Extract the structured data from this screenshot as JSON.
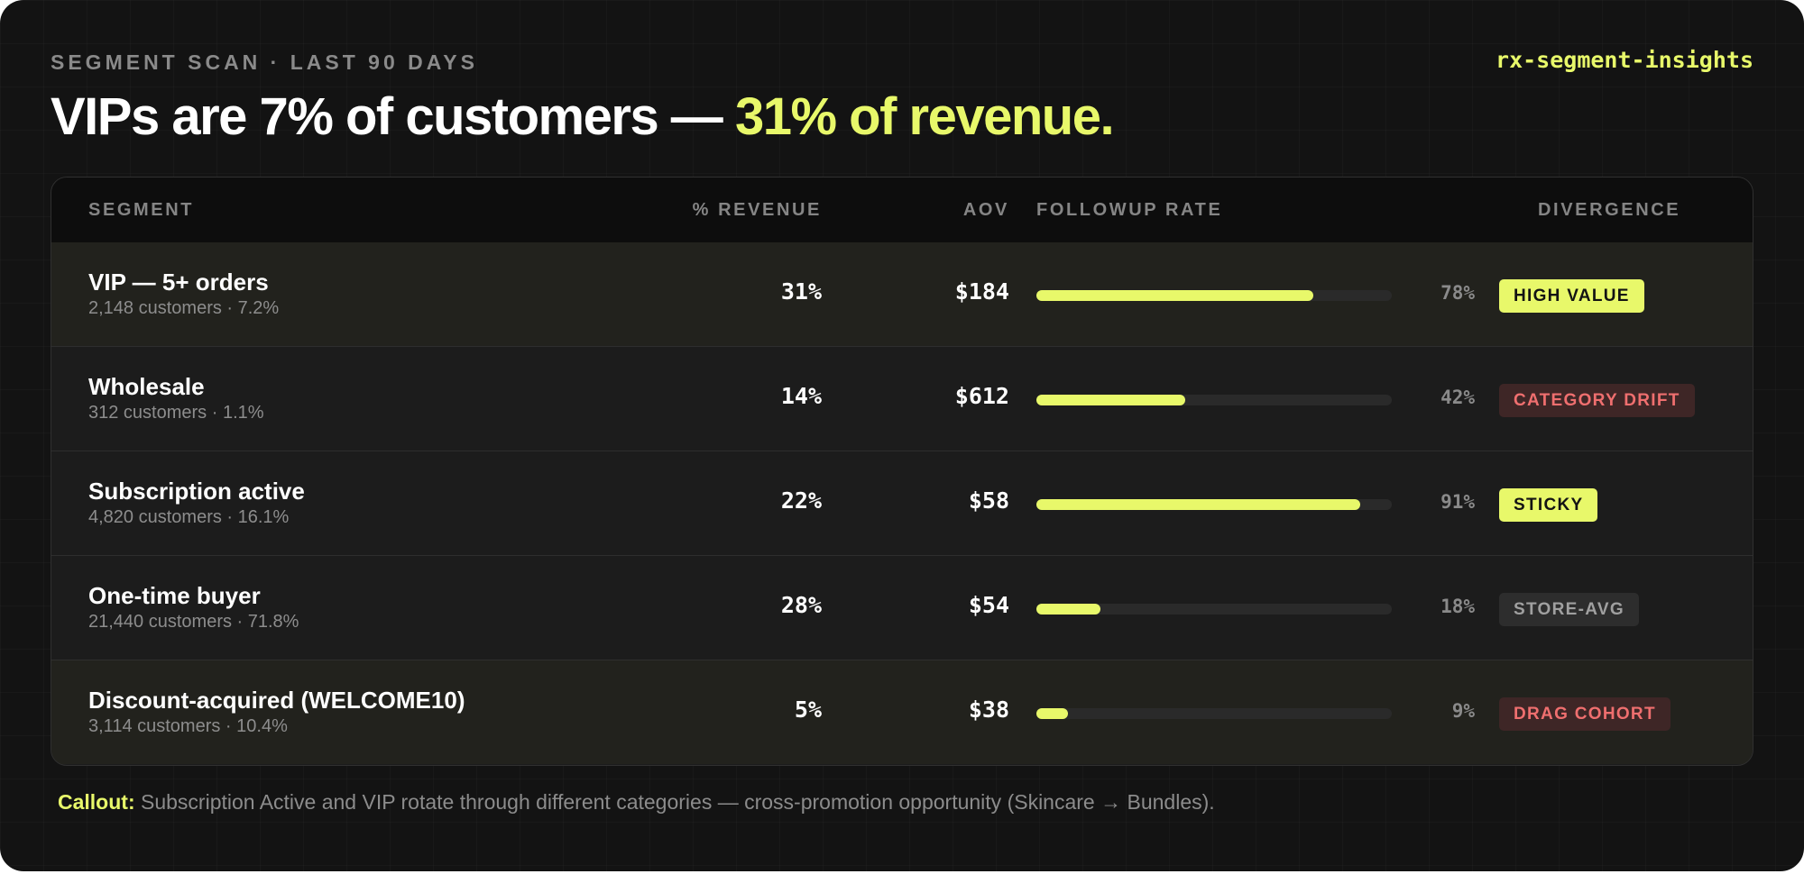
{
  "header": {
    "eyebrow": "SEGMENT SCAN · LAST 90 DAYS",
    "app_id": "rx-segment-insights",
    "headline_main": "VIPs are 7% of customers — ",
    "headline_accent": "31% of revenue."
  },
  "colors": {
    "accent": "#e8f86a",
    "background": "#131313",
    "danger": "#ef6f6f",
    "muted": "#8a8a8a"
  },
  "table": {
    "columns": {
      "segment": "SEGMENT",
      "revenue": "% REVENUE",
      "aov": "AOV",
      "followup": "FOLLOWUP RATE",
      "divergence": "DIVERGENCE"
    },
    "rows": [
      {
        "name": "VIP — 5+ orders",
        "sub": "2,148 customers · 7.2%",
        "revenue": "31%",
        "aov": "$184",
        "followup_rate": 0.78,
        "followup_label": "78%",
        "badge": "HIGH VALUE",
        "badge_style": "lime",
        "highlighted": true
      },
      {
        "name": "Wholesale",
        "sub": "312 customers · 1.1%",
        "revenue": "14%",
        "aov": "$612",
        "followup_rate": 0.42,
        "followup_label": "42%",
        "badge": "CATEGORY DRIFT",
        "badge_style": "red",
        "highlighted": false
      },
      {
        "name": "Subscription active",
        "sub": "4,820 customers · 16.1%",
        "revenue": "22%",
        "aov": "$58",
        "followup_rate": 0.91,
        "followup_label": "91%",
        "badge": "STICKY",
        "badge_style": "lime",
        "highlighted": false
      },
      {
        "name": "One-time buyer",
        "sub": "21,440 customers · 71.8%",
        "revenue": "28%",
        "aov": "$54",
        "followup_rate": 0.18,
        "followup_label": "18%",
        "badge": "STORE-AVG",
        "badge_style": "gray",
        "highlighted": false
      },
      {
        "name": "Discount-acquired (WELCOME10)",
        "sub": "3,114 customers · 10.4%",
        "revenue": "5%",
        "aov": "$38",
        "followup_rate": 0.09,
        "followup_label": "9%",
        "badge": "DRAG COHORT",
        "badge_style": "red",
        "highlighted": true
      }
    ]
  },
  "callout": {
    "label": "Callout:",
    "text": " Subscription Active and VIP rotate through different categories — cross-promotion opportunity (Skincare → Bundles)."
  }
}
